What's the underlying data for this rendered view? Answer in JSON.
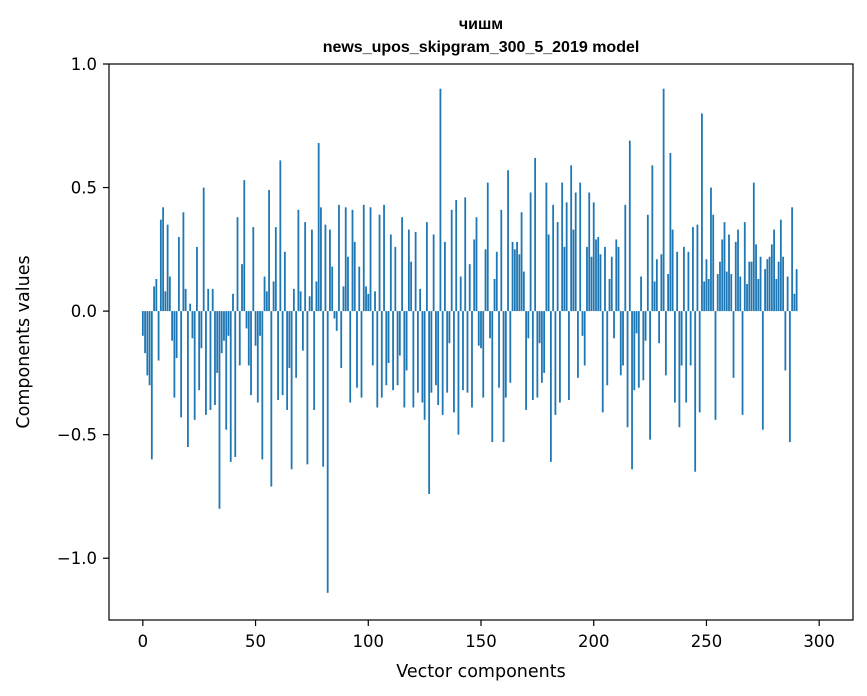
{
  "chart_data": {
    "type": "bar",
    "title": "чишм",
    "subtitle": "news_upos_skipgram_300_5_2019 model",
    "xlabel": "Vector components",
    "ylabel": "Components values",
    "xlim": [
      -15,
      315
    ],
    "ylim": [
      -1.25,
      1.0
    ],
    "x_ticks": [
      0,
      50,
      100,
      150,
      200,
      250,
      300
    ],
    "x_tick_labels": [
      "0",
      "50",
      "100",
      "150",
      "200",
      "250",
      "300"
    ],
    "y_ticks": [
      -1.0,
      -0.5,
      0.0,
      0.5,
      1.0
    ],
    "y_tick_labels": [
      "−1.0",
      "−0.5",
      "0.0",
      "0.5",
      "1.0"
    ],
    "bar_color": "#1f77b4",
    "series": [
      {
        "name": "components",
        "values": [
          -0.1,
          -0.17,
          -0.26,
          -0.3,
          -0.6,
          0.1,
          0.13,
          -0.2,
          0.37,
          0.42,
          0.08,
          0.35,
          0.14,
          -0.12,
          -0.35,
          -0.19,
          0.3,
          -0.43,
          0.4,
          0.09,
          -0.55,
          0.03,
          -0.11,
          -0.44,
          0.26,
          -0.32,
          -0.15,
          0.5,
          -0.42,
          0.09,
          -0.4,
          0.09,
          -0.38,
          -0.25,
          -0.8,
          -0.17,
          -0.12,
          -0.48,
          -0.1,
          -0.61,
          0.07,
          -0.59,
          0.38,
          -0.22,
          0.19,
          0.53,
          -0.07,
          -0.22,
          -0.34,
          0.34,
          -0.14,
          -0.37,
          -0.1,
          -0.6,
          0.14,
          0.08,
          0.49,
          -0.71,
          0.12,
          0.34,
          -0.36,
          0.61,
          -0.34,
          0.24,
          -0.4,
          -0.23,
          -0.64,
          0.09,
          -0.27,
          0.41,
          0.08,
          -0.16,
          0.36,
          -0.62,
          0.06,
          0.33,
          -0.4,
          0.12,
          0.68,
          0.42,
          -0.63,
          0.35,
          -1.14,
          0.33,
          0.18,
          -0.03,
          -0.08,
          0.43,
          -0.23,
          0.1,
          0.42,
          0.22,
          -0.37,
          0.41,
          0.28,
          -0.31,
          0.18,
          -0.35,
          0.43,
          0.1,
          0.07,
          0.42,
          -0.22,
          0.08,
          -0.39,
          0.39,
          -0.35,
          0.43,
          -0.3,
          -0.21,
          0.31,
          -0.32,
          0.26,
          -0.3,
          -0.18,
          0.38,
          -0.39,
          -0.24,
          0.33,
          0.2,
          -0.39,
          0.32,
          -0.33,
          0.09,
          -0.37,
          -0.44,
          0.36,
          -0.74,
          -0.33,
          0.31,
          -0.3,
          -0.38,
          0.9,
          -0.42,
          0.28,
          -0.33,
          -0.13,
          0.41,
          -0.41,
          0.45,
          -0.5,
          0.14,
          -0.32,
          0.46,
          -0.33,
          0.19,
          -0.39,
          0.29,
          0.38,
          -0.14,
          -0.15,
          -0.35,
          0.25,
          0.52,
          -0.11,
          -0.53,
          0.13,
          0.24,
          -0.31,
          0.41,
          -0.53,
          -0.35,
          0.57,
          -0.29,
          0.28,
          0.25,
          0.28,
          0.23,
          0.4,
          0.16,
          -0.4,
          -0.11,
          0.48,
          -0.36,
          0.62,
          -0.35,
          -0.13,
          -0.29,
          -0.25,
          0.52,
          0.31,
          -0.61,
          0.43,
          -0.42,
          0.36,
          -0.37,
          0.52,
          0.26,
          0.44,
          -0.36,
          0.59,
          0.33,
          0.48,
          -0.27,
          0.52,
          -0.1,
          -0.22,
          0.26,
          0.48,
          0.22,
          0.44,
          0.29,
          0.3,
          0.23,
          -0.41,
          0.26,
          -0.3,
          0.13,
          0.22,
          -0.11,
          0.29,
          0.26,
          -0.26,
          -0.22,
          0.43,
          -0.47,
          0.69,
          -0.64,
          -0.32,
          -0.09,
          -0.31,
          0.14,
          -0.28,
          -0.12,
          0.39,
          -0.52,
          0.59,
          0.12,
          0.21,
          -0.13,
          0.23,
          0.9,
          -0.26,
          0.15,
          0.64,
          0.33,
          -0.37,
          0.24,
          -0.47,
          -0.22,
          0.26,
          -0.37,
          0.24,
          -0.22,
          0.34,
          -0.65,
          0.35,
          -0.41,
          0.8,
          0.12,
          0.21,
          0.13,
          0.5,
          0.39,
          -0.44,
          0.15,
          0.2,
          0.29,
          0.36,
          0.16,
          0.31,
          0.15,
          -0.27,
          0.28,
          0.33,
          0.14,
          -0.42,
          0.36,
          0.11,
          0.2,
          0.2,
          0.52,
          0.27,
          0.13,
          0.22,
          -0.48,
          0.17,
          0.21,
          0.22,
          0.27,
          0.33,
          0.13,
          0.2,
          0.37,
          0.22,
          -0.24,
          0.14,
          -0.53,
          0.42,
          0.07,
          0.17
        ]
      }
    ]
  }
}
